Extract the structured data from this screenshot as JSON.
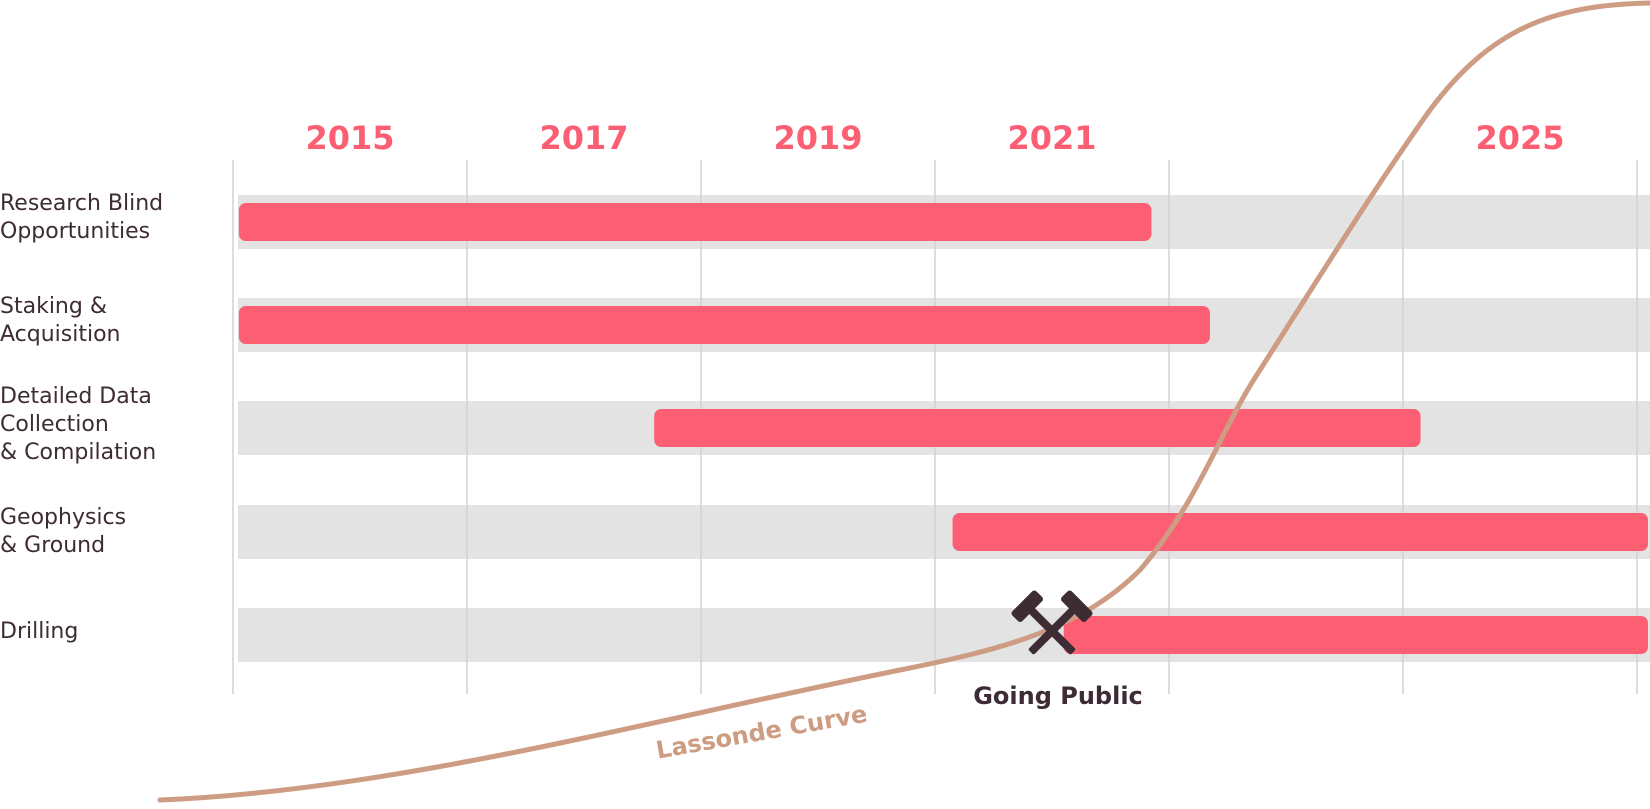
{
  "chart_data": {
    "type": "gantt",
    "x_ticks": [
      "2015",
      "2017",
      "2019",
      "2021",
      "2025"
    ],
    "rows": [
      {
        "label": "Research Blind\nOpportunities",
        "start": 2014.05,
        "end": 2021.85
      },
      {
        "label": "Staking &\nAcquisition",
        "start": 2014.05,
        "end": 2022.35
      },
      {
        "label": "Detailed Data\nCollection\n& Compilation",
        "start": 2017.6,
        "end": 2024.15
      },
      {
        "label": "Geophysics\n& Ground",
        "start": 2020.15,
        "end": 2026.2
      },
      {
        "label": "Drilling",
        "start": 2021.1,
        "end": 2026.2
      }
    ],
    "annotations": {
      "milestone_label": "Going Public",
      "milestone_year": 2021,
      "curve_label": "Lassonde Curve"
    }
  },
  "colors": {
    "bar": "#fc5f73",
    "track": "#e3e3e3",
    "grid": "#d2d2d2",
    "year": "#fc5f73",
    "label": "#3d2b35",
    "curve": "#cd9c82",
    "milestone_icon": "#3e2c35"
  },
  "icons": {
    "milestone": "crossed-hammers-icon"
  }
}
